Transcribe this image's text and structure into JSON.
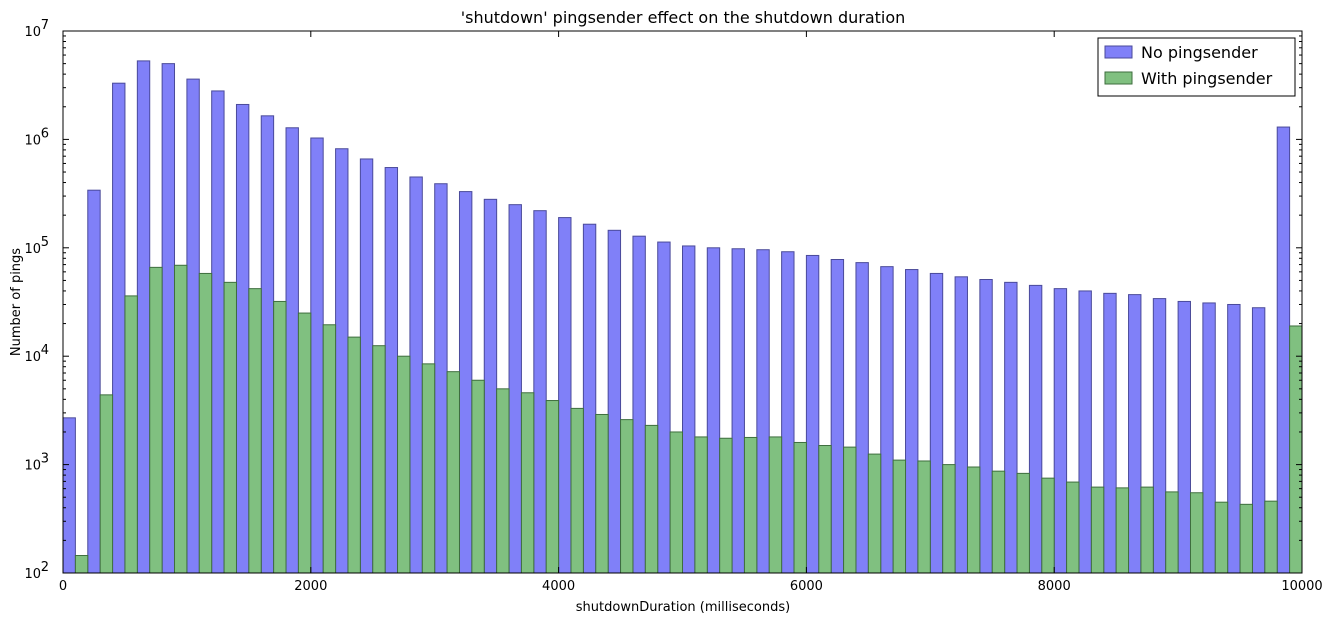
{
  "chart_data": {
    "type": "bar",
    "title": "'shutdown' pingsender effect on the shutdown duration",
    "xlabel": "shutdownDuration (milliseconds)",
    "ylabel": "Number of pings",
    "xlim": [
      0,
      10000
    ],
    "ylim": [
      100,
      10000000
    ],
    "yscale": "log",
    "grid": false,
    "legend_position": "top-right",
    "bin_width": 200,
    "x_ticks": [
      0,
      2000,
      4000,
      6000,
      8000,
      10000
    ],
    "x_tick_labels": [
      "0",
      "2000",
      "4000",
      "6000",
      "8000",
      "10000"
    ],
    "y_ticks": [
      {
        "base": "10",
        "exp": "2",
        "value": 100
      },
      {
        "base": "10",
        "exp": "3",
        "value": 1000
      },
      {
        "base": "10",
        "exp": "4",
        "value": 10000
      },
      {
        "base": "10",
        "exp": "5",
        "value": 100000
      },
      {
        "base": "10",
        "exp": "6",
        "value": 1000000
      },
      {
        "base": "10",
        "exp": "7",
        "value": 10000000
      }
    ],
    "bin_starts": [
      0,
      200,
      400,
      600,
      800,
      1000,
      1200,
      1400,
      1600,
      1800,
      2000,
      2200,
      2400,
      2600,
      2800,
      3000,
      3200,
      3400,
      3600,
      3800,
      4000,
      4200,
      4400,
      4600,
      4800,
      5000,
      5200,
      5400,
      5600,
      5800,
      6000,
      6200,
      6400,
      6600,
      6800,
      7000,
      7200,
      7400,
      7600,
      7800,
      8000,
      8200,
      8400,
      8600,
      8800,
      9000,
      9200,
      9400,
      9600,
      9800
    ],
    "series": [
      {
        "name": "No pingsender",
        "color": "#8080f8",
        "edge": "#4a4a9a",
        "values": [
          2700,
          340000,
          3300000,
          5300000,
          5000000,
          3600000,
          2800000,
          2100000,
          1650000,
          1280000,
          1030000,
          820000,
          660000,
          550000,
          450000,
          390000,
          330000,
          280000,
          250000,
          220000,
          190000,
          165000,
          145000,
          128000,
          113000,
          104000,
          100000,
          98000,
          96000,
          92000,
          85000,
          78000,
          73000,
          67000,
          63000,
          58000,
          54000,
          51000,
          48000,
          45000,
          42000,
          40000,
          38000,
          37000,
          34000,
          32000,
          31000,
          30000,
          28000,
          1300000
        ]
      },
      {
        "name": "With pingsender",
        "color": "#80c080",
        "edge": "#3e6e3e",
        "values": [
          145,
          4400,
          36000,
          66000,
          69000,
          58000,
          48000,
          42000,
          32000,
          25000,
          19500,
          15000,
          12500,
          10000,
          8500,
          7200,
          6000,
          5000,
          4600,
          3900,
          3300,
          2900,
          2600,
          2300,
          2000,
          1800,
          1750,
          1780,
          1800,
          1600,
          1500,
          1450,
          1250,
          1100,
          1080,
          1000,
          950,
          870,
          830,
          750,
          690,
          620,
          610,
          620,
          560,
          550,
          450,
          430,
          460,
          19000
        ]
      }
    ]
  }
}
